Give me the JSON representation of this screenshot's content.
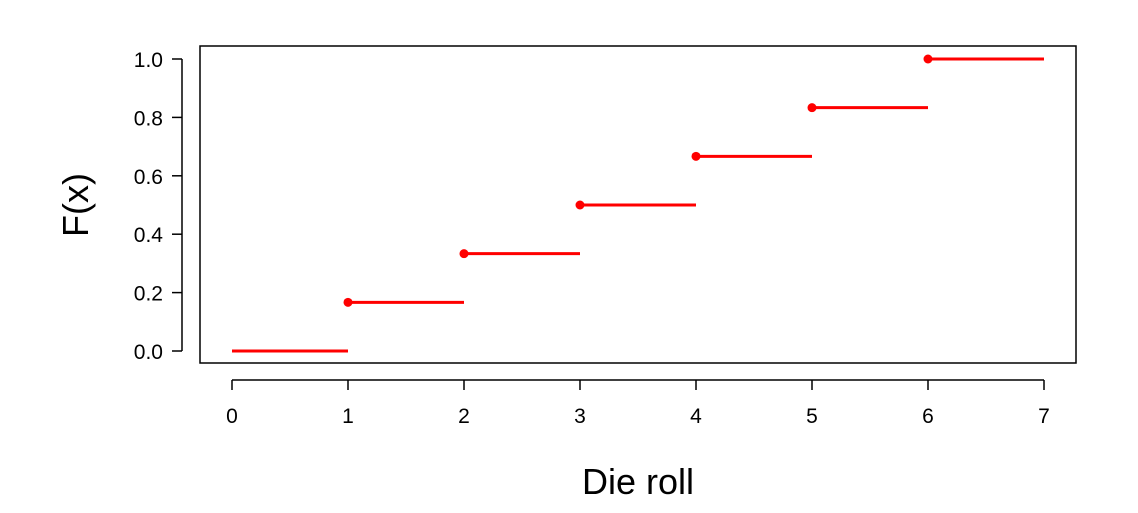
{
  "chart_data": {
    "type": "step",
    "title": "",
    "xlabel": "Die roll",
    "ylabel": "F(x)",
    "xlim": [
      0,
      7
    ],
    "ylim": [
      0,
      1
    ],
    "x_ticks": [
      "0",
      "1",
      "2",
      "3",
      "4",
      "5",
      "6",
      "7"
    ],
    "y_ticks": [
      "0.0",
      "0.2",
      "0.4",
      "0.6",
      "0.8",
      "1.0"
    ],
    "grid": false,
    "series": [
      {
        "color": "#ff0000",
        "steps": [
          {
            "x_start": 0,
            "x_end": 1,
            "y": 0.0,
            "closed_point": false
          },
          {
            "x_start": 1,
            "x_end": 2,
            "y": 0.1667,
            "closed_point": true
          },
          {
            "x_start": 2,
            "x_end": 3,
            "y": 0.3333,
            "closed_point": true
          },
          {
            "x_start": 3,
            "x_end": 4,
            "y": 0.5,
            "closed_point": true
          },
          {
            "x_start": 4,
            "x_end": 5,
            "y": 0.6667,
            "closed_point": true
          },
          {
            "x_start": 5,
            "x_end": 6,
            "y": 0.8333,
            "closed_point": true
          },
          {
            "x_start": 6,
            "x_end": 7,
            "y": 1.0,
            "closed_point": true
          }
        ]
      }
    ]
  }
}
